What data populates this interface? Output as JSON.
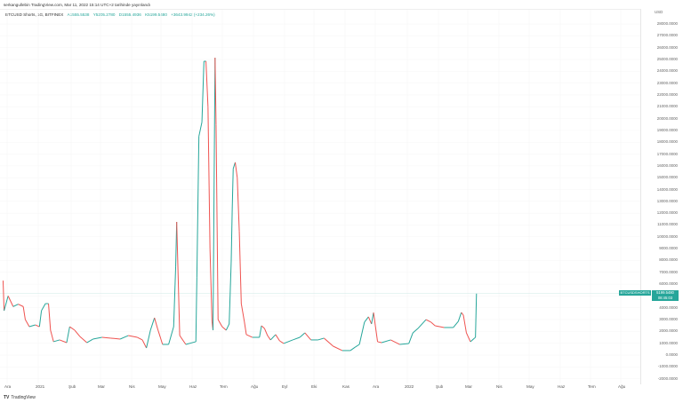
{
  "published": "serkangullebin TradingView.com, Mar 11, 2022 15:14 UTC+2 tarihinde yayınlandı",
  "legend": {
    "symbol": "BTCUSD Shorts, 1G, BITFINEX",
    "open": "A1555.5538",
    "high": "Y5205.2780",
    "low": "D1555.4936",
    "close": "K5199.5480",
    "change": "+3643.9942 (+234.26%)"
  },
  "currency": "USD",
  "price_axis": [
    "28000.0000",
    "27000.0000",
    "26000.0000",
    "25000.0000",
    "24000.0000",
    "23000.0000",
    "22000.0000",
    "21000.0000",
    "20000.0000",
    "19000.0000",
    "18000.0000",
    "17000.0000",
    "16000.0000",
    "15000.0000",
    "14000.0000",
    "13000.0000",
    "12000.0000",
    "11000.0000",
    "10000.0000",
    "9000.0000",
    "8000.0000",
    "7000.0000",
    "6000.0000",
    "4000.0000",
    "3000.0000",
    "2000.0000",
    "1000.0000",
    "0.0000",
    "-1000.0000",
    "-2000.0000"
  ],
  "time_axis": [
    "Ara",
    "2021",
    "Şub",
    "Mar",
    "Nis",
    "May",
    "Haz",
    "Tem",
    "Ağu",
    "Eyl",
    "Eki",
    "Kas",
    "Ara",
    "2022",
    "Şub",
    "Mar",
    "Nis",
    "May",
    "Haz",
    "Tem",
    "Ağu"
  ],
  "price_tag": {
    "symbol": "BTCUSDSHORTS",
    "price": "5199.5480",
    "countdown": "08:45:03"
  },
  "brand": {
    "logo": "TV",
    "name": "TradingView"
  },
  "colors": {
    "up": "#26a69a",
    "down": "#ef5350"
  },
  "chart_data": {
    "type": "line",
    "series": [
      {
        "values": [
          [
            "2020-11-27",
            6300
          ],
          [
            "2020-11-28",
            3750
          ],
          [
            "2020-12-02",
            5000
          ],
          [
            "2020-12-07",
            4100
          ],
          [
            "2020-12-12",
            4300
          ],
          [
            "2020-12-17",
            4100
          ],
          [
            "2020-12-19",
            3000
          ],
          [
            "2020-12-23",
            2400
          ],
          [
            "2020-12-29",
            2550
          ],
          [
            "2021-01-02",
            2400
          ],
          [
            "2021-01-04",
            3750
          ],
          [
            "2021-01-08",
            4350
          ],
          [
            "2021-01-11",
            4350
          ],
          [
            "2021-01-13",
            2100
          ],
          [
            "2021-01-16",
            1130
          ],
          [
            "2021-01-22",
            1280
          ],
          [
            "2021-01-29",
            1050
          ],
          [
            "2021-02-01",
            2400
          ],
          [
            "2021-02-06",
            2100
          ],
          [
            "2021-02-11",
            1580
          ],
          [
            "2021-02-18",
            1050
          ],
          [
            "2021-02-24",
            1350
          ],
          [
            "2021-03-05",
            1500
          ],
          [
            "2021-03-14",
            1430
          ],
          [
            "2021-03-23",
            1350
          ],
          [
            "2021-03-31",
            1650
          ],
          [
            "2021-04-09",
            1500
          ],
          [
            "2021-04-14",
            1280
          ],
          [
            "2021-04-18",
            600
          ],
          [
            "2021-04-22",
            2100
          ],
          [
            "2021-04-26",
            3150
          ],
          [
            "2021-04-29",
            2250
          ],
          [
            "2021-05-04",
            900
          ],
          [
            "2021-05-10",
            900
          ],
          [
            "2021-05-15",
            2400
          ],
          [
            "2021-05-17",
            7500
          ],
          [
            "2021-05-18",
            11260
          ],
          [
            "2021-05-21",
            1650
          ],
          [
            "2021-05-27",
            900
          ],
          [
            "2021-06-06",
            1130
          ],
          [
            "2021-06-07",
            6600
          ],
          [
            "2021-06-09",
            18500
          ],
          [
            "2021-06-12",
            19700
          ],
          [
            "2021-06-14",
            24850
          ],
          [
            "2021-06-16",
            24850
          ],
          [
            "2021-06-18",
            21000
          ],
          [
            "2021-06-20",
            9000
          ],
          [
            "2021-06-22",
            2850
          ],
          [
            "2021-06-23",
            2100
          ],
          [
            "2021-06-25",
            25150
          ],
          [
            "2021-06-26",
            19500
          ],
          [
            "2021-06-28",
            3000
          ],
          [
            "2021-07-02",
            2400
          ],
          [
            "2021-07-06",
            2100
          ],
          [
            "2021-07-09",
            2630
          ],
          [
            "2021-07-11",
            7880
          ],
          [
            "2021-07-12",
            12240
          ],
          [
            "2021-07-13",
            15760
          ],
          [
            "2021-07-15",
            16300
          ],
          [
            "2021-07-17",
            15000
          ],
          [
            "2021-07-19",
            10500
          ],
          [
            "2021-07-21",
            4350
          ],
          [
            "2021-07-24",
            2850
          ],
          [
            "2021-07-26",
            1730
          ],
          [
            "2021-08-01",
            1500
          ],
          [
            "2021-08-08",
            1500
          ],
          [
            "2021-08-10",
            2480
          ],
          [
            "2021-08-13",
            2250
          ],
          [
            "2021-08-16",
            1650
          ],
          [
            "2021-08-19",
            1280
          ],
          [
            "2021-08-24",
            1730
          ],
          [
            "2021-08-28",
            1200
          ],
          [
            "2021-09-01",
            980
          ],
          [
            "2021-09-10",
            1280
          ],
          [
            "2021-09-17",
            1500
          ],
          [
            "2021-09-22",
            1880
          ],
          [
            "2021-09-28",
            1280
          ],
          [
            "2021-10-05",
            1280
          ],
          [
            "2021-10-11",
            1430
          ],
          [
            "2021-10-20",
            750
          ],
          [
            "2021-10-29",
            380
          ],
          [
            "2021-11-06",
            380
          ],
          [
            "2021-11-11",
            680
          ],
          [
            "2021-11-15",
            900
          ],
          [
            "2021-11-20",
            2780
          ],
          [
            "2021-11-24",
            3230
          ],
          [
            "2021-11-27",
            2630
          ],
          [
            "2021-11-29",
            3600
          ],
          [
            "2021-12-03",
            1130
          ],
          [
            "2021-12-07",
            1050
          ],
          [
            "2021-12-16",
            1280
          ],
          [
            "2021-12-25",
            900
          ],
          [
            "2022-01-03",
            980
          ],
          [
            "2022-01-07",
            1880
          ],
          [
            "2022-01-12",
            2250
          ],
          [
            "2022-01-20",
            3000
          ],
          [
            "2022-01-25",
            2780
          ],
          [
            "2022-01-29",
            2480
          ],
          [
            "2022-02-07",
            2330
          ],
          [
            "2022-02-16",
            2330
          ],
          [
            "2022-02-21",
            2850
          ],
          [
            "2022-02-24",
            3600
          ],
          [
            "2022-02-26",
            3380
          ],
          [
            "2022-03-01",
            1880
          ],
          [
            "2022-03-05",
            1130
          ],
          [
            "2022-03-09",
            1430
          ],
          [
            "2022-03-10",
            1500
          ],
          [
            "2022-03-11",
            5199.548
          ]
        ]
      }
    ],
    "ylim": [
      -2000,
      29000
    ],
    "xlim": [
      "2020-11-25",
      "2022-08-31"
    ],
    "grid": true,
    "legend": "top-left"
  }
}
